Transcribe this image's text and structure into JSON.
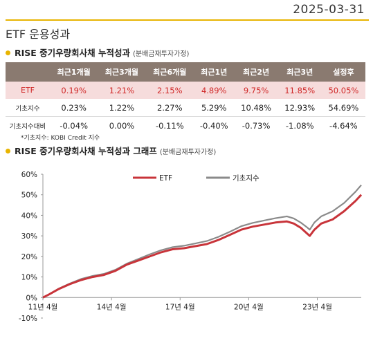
{
  "date": "2025-03-31",
  "page_title": "ETF 운용성과",
  "section1": {
    "title": "RISE 중기우량회사채 누적성과",
    "note": "(분배금재투자가정)"
  },
  "table": {
    "headers": [
      "",
      "최근1개월",
      "최근3개월",
      "최근6개월",
      "최근1년",
      "최근2년",
      "최근3년",
      "설정후"
    ],
    "rows": [
      {
        "label": "ETF",
        "values": [
          "0.19%",
          "1.21%",
          "2.15%",
          "4.89%",
          "9.75%",
          "11.85%",
          "50.05%"
        ]
      },
      {
        "label": "기초지수",
        "values": [
          "0.23%",
          "1.22%",
          "2.27%",
          "5.29%",
          "10.48%",
          "12.93%",
          "54.69%"
        ]
      },
      {
        "label": "기초지수대비",
        "values": [
          "-0.04%",
          "0.00%",
          "-0.11%",
          "-0.40%",
          "-0.73%",
          "-1.08%",
          "-4.64%"
        ]
      }
    ]
  },
  "footnote": "*기초지수: KOBI Credit 지수",
  "section2": {
    "title": "RISE 중기우량회사채 누적성과 그래프",
    "note": "(분배금재투자가정)"
  },
  "colors": {
    "etf": "#c8343a",
    "index": "#8a8a8a",
    "accent": "#e8b400",
    "header_bg": "#8a7a70"
  },
  "chart_data": {
    "type": "line",
    "ylim": [
      -10,
      60
    ],
    "yticks": [
      -10,
      0,
      10,
      20,
      30,
      40,
      50,
      60
    ],
    "ytick_labels": [
      "-10%",
      "0%",
      "10%",
      "20%",
      "30%",
      "40%",
      "50%",
      "60%"
    ],
    "xlim": [
      2011.33,
      2025.25
    ],
    "xticks": [
      2011.33,
      2014.33,
      2017.33,
      2020.33,
      2023.33
    ],
    "xtick_labels": [
      "11년 4월",
      "14년 4월",
      "17년 4월",
      "20년 4월",
      "23년 4월"
    ],
    "legend": "top",
    "series": [
      {
        "name": "ETF",
        "points": [
          [
            2011.33,
            0
          ],
          [
            2011.6,
            1.5
          ],
          [
            2012.0,
            4
          ],
          [
            2012.5,
            6.5
          ],
          [
            2013.0,
            8.5
          ],
          [
            2013.5,
            10
          ],
          [
            2014.0,
            11
          ],
          [
            2014.5,
            13
          ],
          [
            2015.0,
            16
          ],
          [
            2015.5,
            18
          ],
          [
            2016.0,
            20
          ],
          [
            2016.5,
            22
          ],
          [
            2017.0,
            23.5
          ],
          [
            2017.5,
            24
          ],
          [
            2018.0,
            25
          ],
          [
            2018.5,
            26
          ],
          [
            2019.0,
            28
          ],
          [
            2019.5,
            30.5
          ],
          [
            2020.0,
            33
          ],
          [
            2020.5,
            34.5
          ],
          [
            2021.0,
            35.5
          ],
          [
            2021.5,
            36.5
          ],
          [
            2022.0,
            37
          ],
          [
            2022.3,
            36
          ],
          [
            2022.6,
            34
          ],
          [
            2022.9,
            31
          ],
          [
            2023.0,
            30
          ],
          [
            2023.2,
            33
          ],
          [
            2023.5,
            36
          ],
          [
            2024.0,
            38
          ],
          [
            2024.5,
            42
          ],
          [
            2025.0,
            47
          ],
          [
            2025.25,
            50
          ]
        ]
      },
      {
        "name": "기초지수",
        "points": [
          [
            2011.33,
            0
          ],
          [
            2011.6,
            1.5
          ],
          [
            2012.0,
            4.2
          ],
          [
            2012.5,
            6.8
          ],
          [
            2013.0,
            9
          ],
          [
            2013.5,
            10.5
          ],
          [
            2014.0,
            11.5
          ],
          [
            2014.5,
            13.5
          ],
          [
            2015.0,
            16.5
          ],
          [
            2015.5,
            18.7
          ],
          [
            2016.0,
            21
          ],
          [
            2016.5,
            23
          ],
          [
            2017.0,
            24.5
          ],
          [
            2017.5,
            25.2
          ],
          [
            2018.0,
            26.3
          ],
          [
            2018.5,
            27.5
          ],
          [
            2019.0,
            29.5
          ],
          [
            2019.5,
            32
          ],
          [
            2020.0,
            34.7
          ],
          [
            2020.5,
            36.3
          ],
          [
            2021.0,
            37.5
          ],
          [
            2021.5,
            38.6
          ],
          [
            2022.0,
            39.5
          ],
          [
            2022.3,
            38.5
          ],
          [
            2022.6,
            36.5
          ],
          [
            2022.9,
            34
          ],
          [
            2023.0,
            33
          ],
          [
            2023.2,
            36.5
          ],
          [
            2023.5,
            39.5
          ],
          [
            2024.0,
            42
          ],
          [
            2024.5,
            46
          ],
          [
            2025.0,
            51.5
          ],
          [
            2025.25,
            54.7
          ]
        ]
      }
    ]
  }
}
